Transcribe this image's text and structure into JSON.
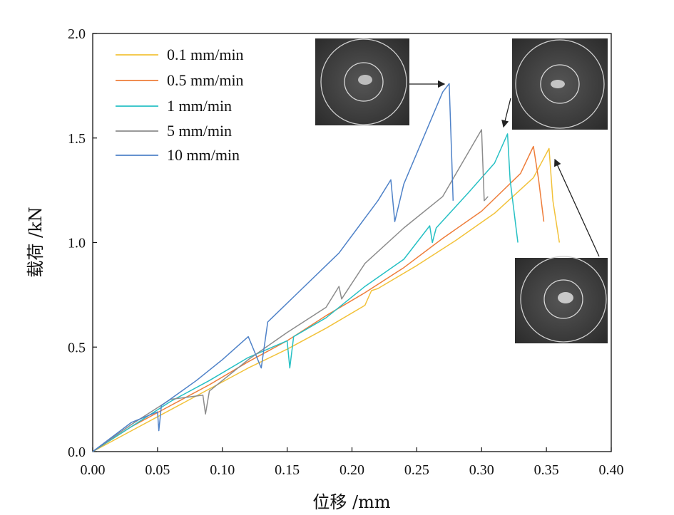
{
  "chart_data": {
    "type": "line",
    "xlabel": "位移 /mm",
    "ylabel": "载荷 /kN",
    "xlim": [
      0.0,
      0.4
    ],
    "ylim": [
      0.0,
      2.0
    ],
    "x_ticks": [
      "0.00",
      "0.05",
      "0.10",
      "0.15",
      "0.20",
      "0.25",
      "0.30",
      "0.35",
      "0.40"
    ],
    "y_ticks": [
      "0.0",
      "0.5",
      "1.0",
      "1.5",
      "2.0"
    ],
    "legend_position": "top-left",
    "grid": false,
    "series": [
      {
        "name": "0.1 mm/min",
        "color": "#f2c23a",
        "points": [
          [
            0.0,
            0.0
          ],
          [
            0.03,
            0.1
          ],
          [
            0.06,
            0.2
          ],
          [
            0.09,
            0.3
          ],
          [
            0.12,
            0.4
          ],
          [
            0.15,
            0.49
          ],
          [
            0.18,
            0.59
          ],
          [
            0.21,
            0.7
          ],
          [
            0.215,
            0.77
          ],
          [
            0.22,
            0.78
          ],
          [
            0.25,
            0.89
          ],
          [
            0.28,
            1.01
          ],
          [
            0.31,
            1.14
          ],
          [
            0.34,
            1.31
          ],
          [
            0.352,
            1.45
          ],
          [
            0.355,
            1.2
          ],
          [
            0.36,
            1.0
          ]
        ]
      },
      {
        "name": "0.5 mm/min",
        "color": "#ee7d3a",
        "points": [
          [
            0.0,
            0.0
          ],
          [
            0.03,
            0.12
          ],
          [
            0.06,
            0.22
          ],
          [
            0.09,
            0.32
          ],
          [
            0.12,
            0.43
          ],
          [
            0.15,
            0.53
          ],
          [
            0.18,
            0.65
          ],
          [
            0.21,
            0.76
          ],
          [
            0.24,
            0.88
          ],
          [
            0.27,
            1.02
          ],
          [
            0.3,
            1.15
          ],
          [
            0.33,
            1.33
          ],
          [
            0.34,
            1.46
          ],
          [
            0.344,
            1.3
          ],
          [
            0.348,
            1.1
          ]
        ]
      },
      {
        "name": "1 mm/min",
        "color": "#26c0c4",
        "points": [
          [
            0.0,
            0.0
          ],
          [
            0.03,
            0.12
          ],
          [
            0.06,
            0.24
          ],
          [
            0.09,
            0.34
          ],
          [
            0.12,
            0.45
          ],
          [
            0.15,
            0.53
          ],
          [
            0.152,
            0.4
          ],
          [
            0.155,
            0.55
          ],
          [
            0.18,
            0.64
          ],
          [
            0.21,
            0.79
          ],
          [
            0.24,
            0.92
          ],
          [
            0.26,
            1.08
          ],
          [
            0.262,
            1.0
          ],
          [
            0.265,
            1.07
          ],
          [
            0.29,
            1.24
          ],
          [
            0.31,
            1.38
          ],
          [
            0.32,
            1.52
          ],
          [
            0.322,
            1.3
          ],
          [
            0.328,
            1.0
          ]
        ]
      },
      {
        "name": "5 mm/min",
        "color": "#8c8c8c",
        "points": [
          [
            0.0,
            0.0
          ],
          [
            0.03,
            0.13
          ],
          [
            0.06,
            0.25
          ],
          [
            0.085,
            0.27
          ],
          [
            0.087,
            0.18
          ],
          [
            0.09,
            0.29
          ],
          [
            0.12,
            0.44
          ],
          [
            0.15,
            0.57
          ],
          [
            0.18,
            0.69
          ],
          [
            0.19,
            0.79
          ],
          [
            0.192,
            0.73
          ],
          [
            0.21,
            0.9
          ],
          [
            0.24,
            1.07
          ],
          [
            0.27,
            1.22
          ],
          [
            0.3,
            1.54
          ],
          [
            0.302,
            1.2
          ],
          [
            0.305,
            1.22
          ]
        ]
      },
      {
        "name": "10 mm/min",
        "color": "#4f82c8",
        "points": [
          [
            0.0,
            0.0
          ],
          [
            0.03,
            0.14
          ],
          [
            0.05,
            0.19
          ],
          [
            0.051,
            0.1
          ],
          [
            0.053,
            0.22
          ],
          [
            0.08,
            0.34
          ],
          [
            0.1,
            0.44
          ],
          [
            0.12,
            0.55
          ],
          [
            0.13,
            0.4
          ],
          [
            0.135,
            0.62
          ],
          [
            0.16,
            0.77
          ],
          [
            0.19,
            0.95
          ],
          [
            0.22,
            1.2
          ],
          [
            0.23,
            1.3
          ],
          [
            0.233,
            1.1
          ],
          [
            0.24,
            1.28
          ],
          [
            0.27,
            1.72
          ],
          [
            0.275,
            1.76
          ],
          [
            0.277,
            1.4
          ],
          [
            0.278,
            1.2
          ]
        ]
      }
    ]
  },
  "insets": [
    {
      "name": "specimen-photo-top-left"
    },
    {
      "name": "specimen-photo-top-right"
    },
    {
      "name": "specimen-photo-bottom-right"
    }
  ]
}
